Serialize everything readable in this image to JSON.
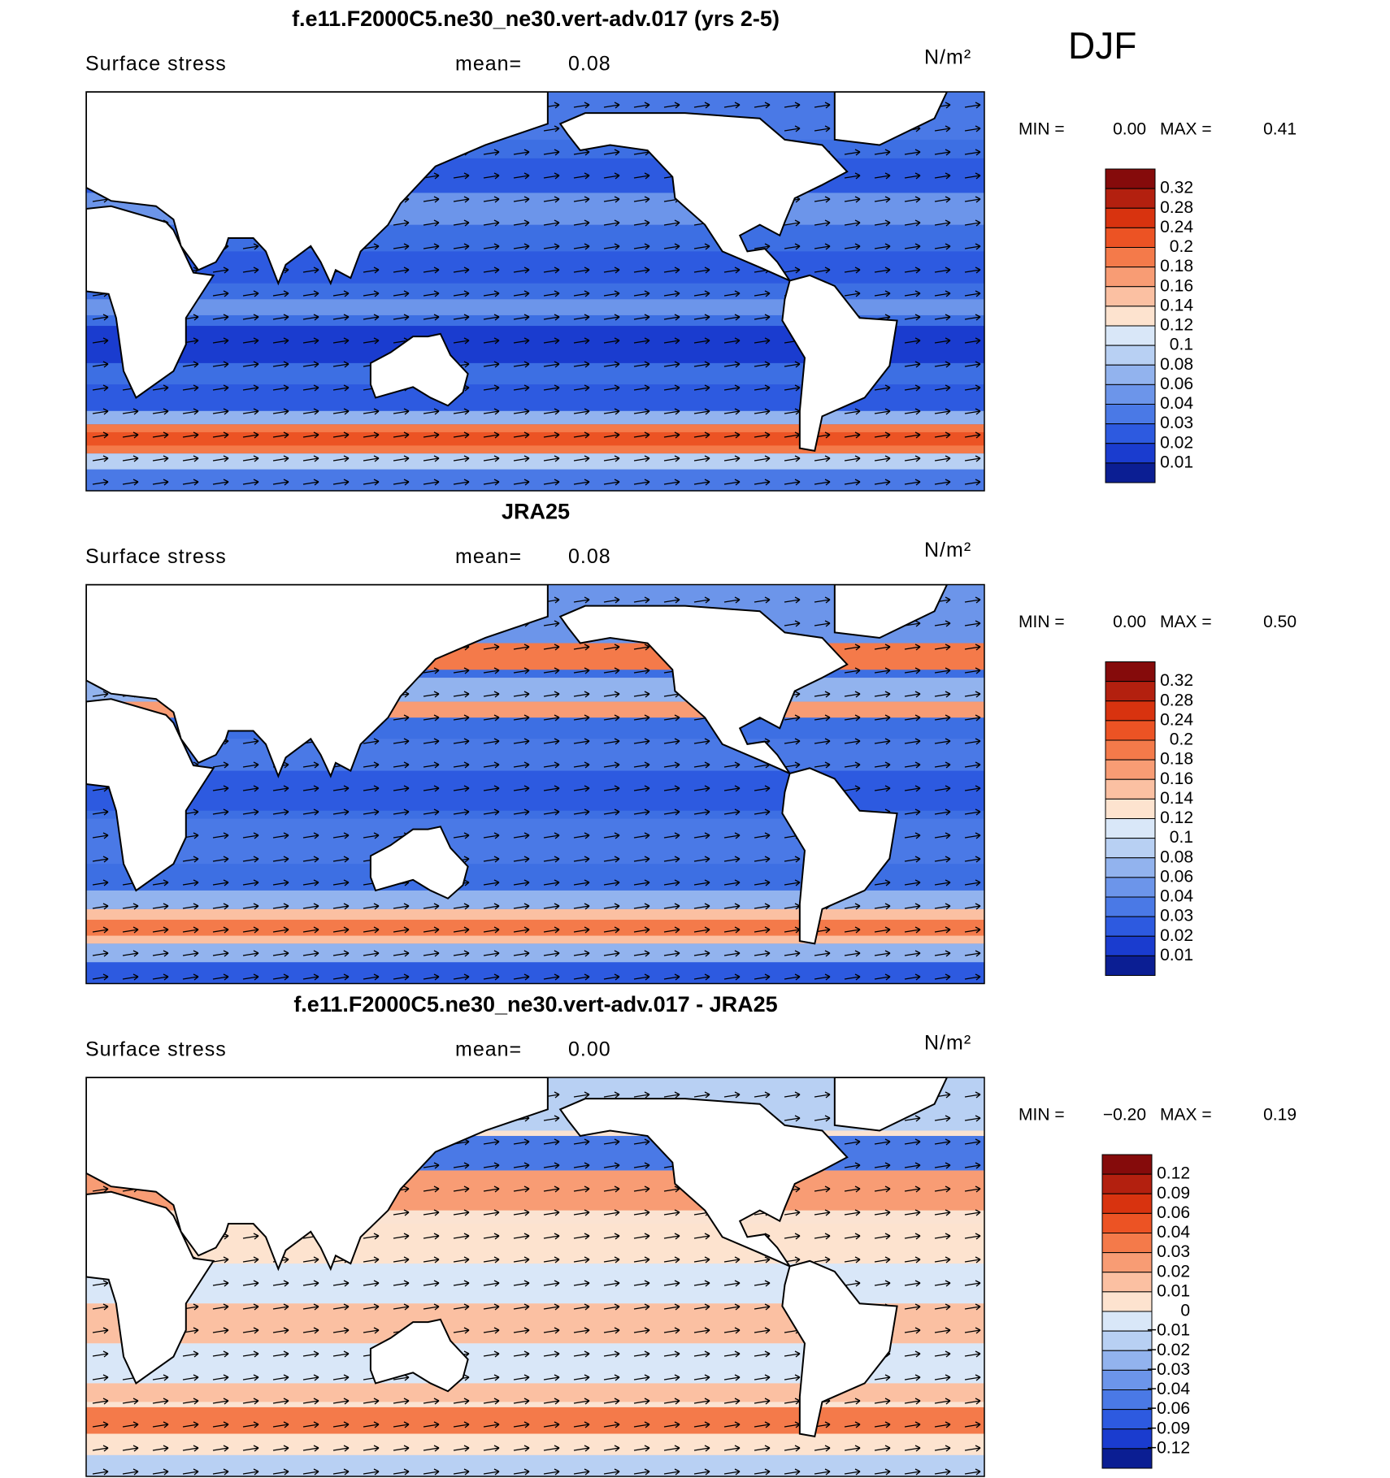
{
  "header": {
    "season": "DJF"
  },
  "panels": [
    {
      "title": "f.e11.F2000C5.ne30_ne30.vert-adv.017 (yrs 2-5)",
      "variable": "Surface stress",
      "mean_label": "mean=",
      "mean": "0.08",
      "units": "N/m²",
      "min_label": "MIN =",
      "min": "0.00",
      "max_label": "MAX =",
      "max": "0.41",
      "colorbar": {
        "labels": [
          "0.32",
          "0.28",
          "0.24",
          "0.2",
          "0.18",
          "0.16",
          "0.14",
          "0.12",
          "0.1",
          "0.08",
          "0.06",
          "0.04",
          "0.03",
          "0.02",
          "0.01"
        ],
        "colors": [
          "#850b0b",
          "#b3200f",
          "#d8330f",
          "#ec5324",
          "#f47a4a",
          "#f89c74",
          "#fbc0a2",
          "#fde3cf",
          "#d9e7f8",
          "#b8d0f3",
          "#92b3ee",
          "#6c95ea",
          "#4a79e6",
          "#2d5ae0",
          "#1a3ccf",
          "#0b1e93"
        ]
      }
    },
    {
      "title": "JRA25",
      "variable": "Surface stress",
      "mean_label": "mean=",
      "mean": "0.08",
      "units": "N/m²",
      "min_label": "MIN =",
      "min": "0.00",
      "max_label": "MAX =",
      "max": "0.50",
      "colorbar": {
        "labels": [
          "0.32",
          "0.28",
          "0.24",
          "0.2",
          "0.18",
          "0.16",
          "0.14",
          "0.12",
          "0.1",
          "0.08",
          "0.06",
          "0.04",
          "0.03",
          "0.02",
          "0.01"
        ],
        "colors": [
          "#850b0b",
          "#b3200f",
          "#d8330f",
          "#ec5324",
          "#f47a4a",
          "#f89c74",
          "#fbc0a2",
          "#fde3cf",
          "#d9e7f8",
          "#b8d0f3",
          "#92b3ee",
          "#6c95ea",
          "#4a79e6",
          "#2d5ae0",
          "#1a3ccf",
          "#0b1e93"
        ]
      }
    },
    {
      "title": "f.e11.F2000C5.ne30_ne30.vert-adv.017 - JRA25",
      "variable": "Surface stress",
      "mean_label": "mean=",
      "mean": "0.00",
      "units": "N/m²",
      "min_label": "MIN =",
      "min": "−0.20",
      "max_label": "MAX =",
      "max": "0.19",
      "colorbar": {
        "labels": [
          "0.12",
          "0.09",
          "0.06",
          "0.04",
          "0.03",
          "0.02",
          "0.01",
          "0",
          "−0.01",
          "−0.02",
          "−0.03",
          "−0.04",
          "−0.06",
          "−0.09",
          "−0.12"
        ],
        "colors": [
          "#850b0b",
          "#b3200f",
          "#d8330f",
          "#ec5324",
          "#f47a4a",
          "#f89c74",
          "#fbc0a2",
          "#fde3cf",
          "#d9e7f8",
          "#b8d0f3",
          "#92b3ee",
          "#6c95ea",
          "#4a79e6",
          "#2d5ae0",
          "#1a3ccf",
          "#0b1e93"
        ]
      }
    }
  ]
}
